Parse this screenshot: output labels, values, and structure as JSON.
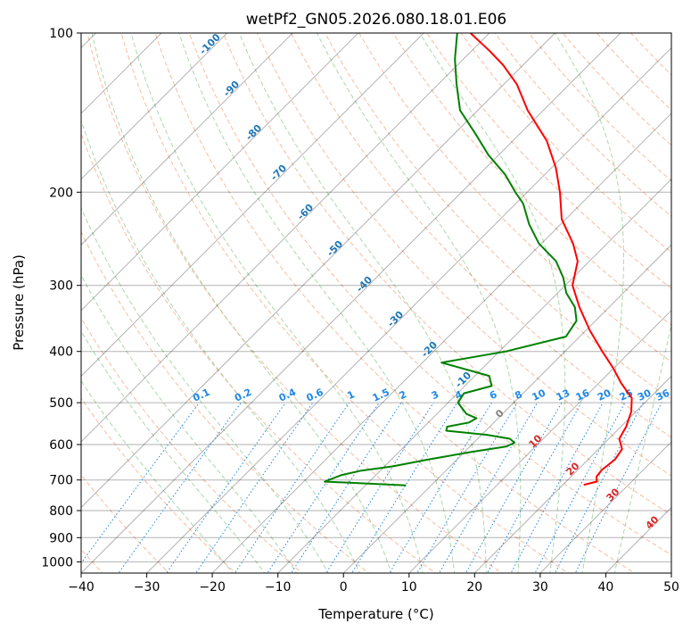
{
  "chart_data": {
    "type": "line",
    "title": "wetPf2_GN05.2026.080.18.01.E06",
    "xlabel": "Temperature (°C)",
    "ylabel": "Pressure (hPa)",
    "xlim": [
      -40,
      50
    ],
    "ylim": [
      1050,
      100
    ],
    "yscale": "log",
    "skew": "45-degree skew-T",
    "grid": true,
    "x_ticks": [
      "−40",
      "−30",
      "−20",
      "−10",
      "0",
      "10",
      "20",
      "30",
      "40",
      "50"
    ],
    "x_tick_values": [
      -40,
      -30,
      -20,
      -10,
      0,
      10,
      20,
      30,
      40,
      50
    ],
    "y_ticks": [
      "100",
      "200",
      "300",
      "400",
      "500",
      "600",
      "700",
      "800",
      "900",
      "1000"
    ],
    "y_tick_values": [
      100,
      200,
      300,
      400,
      500,
      600,
      700,
      800,
      900,
      1000
    ],
    "series": [
      {
        "color": "#ff0000",
        "values": [
          {
            "p": 715,
            "t": 23.2
          },
          {
            "p": 705,
            "t": 24.7
          },
          {
            "p": 690,
            "t": 23.9
          },
          {
            "p": 670,
            "t": 23.7
          },
          {
            "p": 640,
            "t": 24.1
          },
          {
            "p": 612,
            "t": 23.6
          },
          {
            "p": 585,
            "t": 21.6
          },
          {
            "p": 555,
            "t": 20.8
          },
          {
            "p": 520,
            "t": 19.3
          },
          {
            "p": 490,
            "t": 17.3
          },
          {
            "p": 460,
            "t": 13.5
          },
          {
            "p": 430,
            "t": 9.9
          },
          {
            "p": 400,
            "t": 5.7
          },
          {
            "p": 365,
            "t": 0.6
          },
          {
            "p": 330,
            "t": -4.5
          },
          {
            "p": 300,
            "t": -8.9
          },
          {
            "p": 270,
            "t": -11.8
          },
          {
            "p": 250,
            "t": -15.2
          },
          {
            "p": 225,
            "t": -20.6
          },
          {
            "p": 200,
            "t": -25.0
          },
          {
            "p": 180,
            "t": -29.3
          },
          {
            "p": 160,
            "t": -34.8
          },
          {
            "p": 140,
            "t": -42.4
          },
          {
            "p": 125,
            "t": -48.0
          },
          {
            "p": 115,
            "t": -53.0
          },
          {
            "p": 108,
            "t": -57.3
          },
          {
            "p": 100,
            "t": -62.9
          }
        ]
      },
      {
        "color": "#008000",
        "values": [
          {
            "p": 717,
            "t": -3.8
          },
          {
            "p": 705,
            "t": -16.8
          },
          {
            "p": 685,
            "t": -15.2
          },
          {
            "p": 672,
            "t": -12.9
          },
          {
            "p": 660,
            "t": -8.8
          },
          {
            "p": 640,
            "t": -4.3
          },
          {
            "p": 620,
            "t": 1.0
          },
          {
            "p": 605,
            "t": 5.6
          },
          {
            "p": 595,
            "t": 6.2
          },
          {
            "p": 585,
            "t": 4.9
          },
          {
            "p": 575,
            "t": 0.8
          },
          {
            "p": 565,
            "t": -6.0
          },
          {
            "p": 555,
            "t": -6.5
          },
          {
            "p": 545,
            "t": -3.8
          },
          {
            "p": 535,
            "t": -3.3
          },
          {
            "p": 525,
            "t": -5.5
          },
          {
            "p": 500,
            "t": -8.5
          },
          {
            "p": 480,
            "t": -9.0
          },
          {
            "p": 465,
            "t": -5.9
          },
          {
            "p": 445,
            "t": -7.8
          },
          {
            "p": 420,
            "t": -17.1
          },
          {
            "p": 400,
            "t": -9.0
          },
          {
            "p": 375,
            "t": -2.1
          },
          {
            "p": 350,
            "t": -2.9
          },
          {
            "p": 330,
            "t": -5.2
          },
          {
            "p": 310,
            "t": -8.7
          },
          {
            "p": 290,
            "t": -11.5
          },
          {
            "p": 270,
            "t": -15.1
          },
          {
            "p": 250,
            "t": -20.4
          },
          {
            "p": 230,
            "t": -24.8
          },
          {
            "p": 210,
            "t": -28.9
          },
          {
            "p": 200,
            "t": -31.8
          },
          {
            "p": 185,
            "t": -36.1
          },
          {
            "p": 170,
            "t": -41.6
          },
          {
            "p": 155,
            "t": -46.8
          },
          {
            "p": 140,
            "t": -52.7
          },
          {
            "p": 125,
            "t": -57.2
          },
          {
            "p": 112,
            "t": -61.3
          },
          {
            "p": 100,
            "t": -64.9
          }
        ]
      }
    ],
    "dry_adiabats_c": [
      -100,
      -90,
      -80,
      -70,
      -60,
      -50,
      -40,
      -30,
      -20,
      -10,
      0,
      10,
      20,
      30,
      40,
      50,
      60,
      70,
      80,
      90,
      100,
      110,
      120,
      130,
      140,
      150,
      160,
      170,
      180
    ],
    "moist_adiabats_c": [
      -20,
      -15,
      -10,
      -5,
      0,
      5,
      10,
      15,
      20,
      25,
      30,
      35,
      40
    ],
    "mixing_ratios": [
      0.1,
      0.2,
      0.4,
      0.6,
      1,
      1.5,
      2,
      3,
      4,
      6,
      8,
      10,
      13,
      16,
      20,
      25,
      30,
      36
    ],
    "annotations": {
      "dry_adiabat_labels": [
        "-100",
        "-90",
        "-80",
        "-70",
        "-60",
        "-50",
        "-40",
        "-30",
        "-20",
        "-10"
      ],
      "moist_adiabat_labels": [
        "0",
        "10",
        "20",
        "30",
        "40"
      ],
      "mixing_ratio_labels": [
        "0.1",
        "0.2",
        "0.4",
        "0.6",
        "1",
        "1.5",
        "2",
        "3",
        "4",
        "6",
        "8",
        "10",
        "13",
        "16",
        "20",
        "25",
        "30",
        "36"
      ]
    },
    "colors": {
      "isotherm": "#000000",
      "isobar": "#000000",
      "dry_adiabat": "#f4a582",
      "moist_adiabat": "#8fc98f",
      "mixing_ratio": "#1e88e5",
      "dry_label": "#1f77b4",
      "moist_label": "#d62728",
      "zero_label": "#808080",
      "temperature": "#ff0000",
      "dewpoint": "#008000"
    }
  }
}
